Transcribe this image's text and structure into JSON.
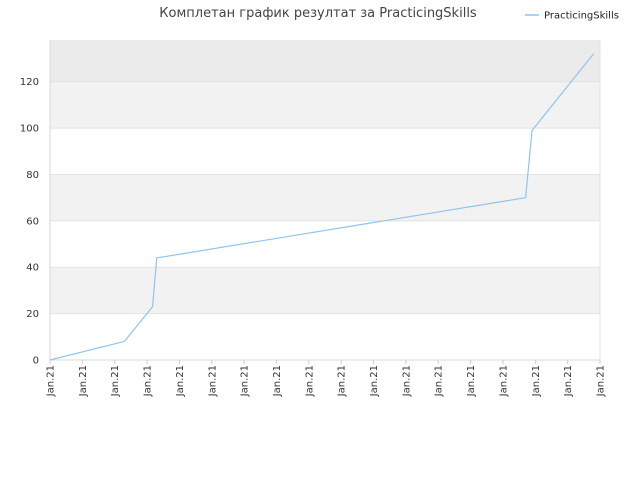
{
  "chart_data": {
    "type": "line",
    "title": "Комплетан график резултат за PracticingSkills",
    "xlabel": "",
    "ylabel": "",
    "ylim": [
      0,
      138
    ],
    "y_ticks": [
      0,
      20,
      40,
      60,
      80,
      100,
      120
    ],
    "x_tick_labels": [
      "Jan.21",
      "Jan.21",
      "Jan.21",
      "Jan.21",
      "Jan.21",
      "Jan.21",
      "Jan.21",
      "Jan.21",
      "Jan.21",
      "Jan.21",
      "Jan.21",
      "Jan.21",
      "Jan.21",
      "Jan.21",
      "Jan.21",
      "Jan.21",
      "Jan.21",
      "Jan.21"
    ],
    "legend_position": "top-right",
    "grid": true,
    "colors": {
      "series": "#90c4ec",
      "band_light": "#f2f2f2",
      "band_dark": "#ebebeb",
      "band_white": "#ffffff"
    },
    "series": [
      {
        "name": "PracticingSkills",
        "x": [
          0,
          2.3,
          3.17,
          3.3,
          14.7,
          14.9,
          16.8
        ],
        "y": [
          0,
          8,
          23,
          44,
          70,
          99,
          132
        ]
      }
    ]
  }
}
